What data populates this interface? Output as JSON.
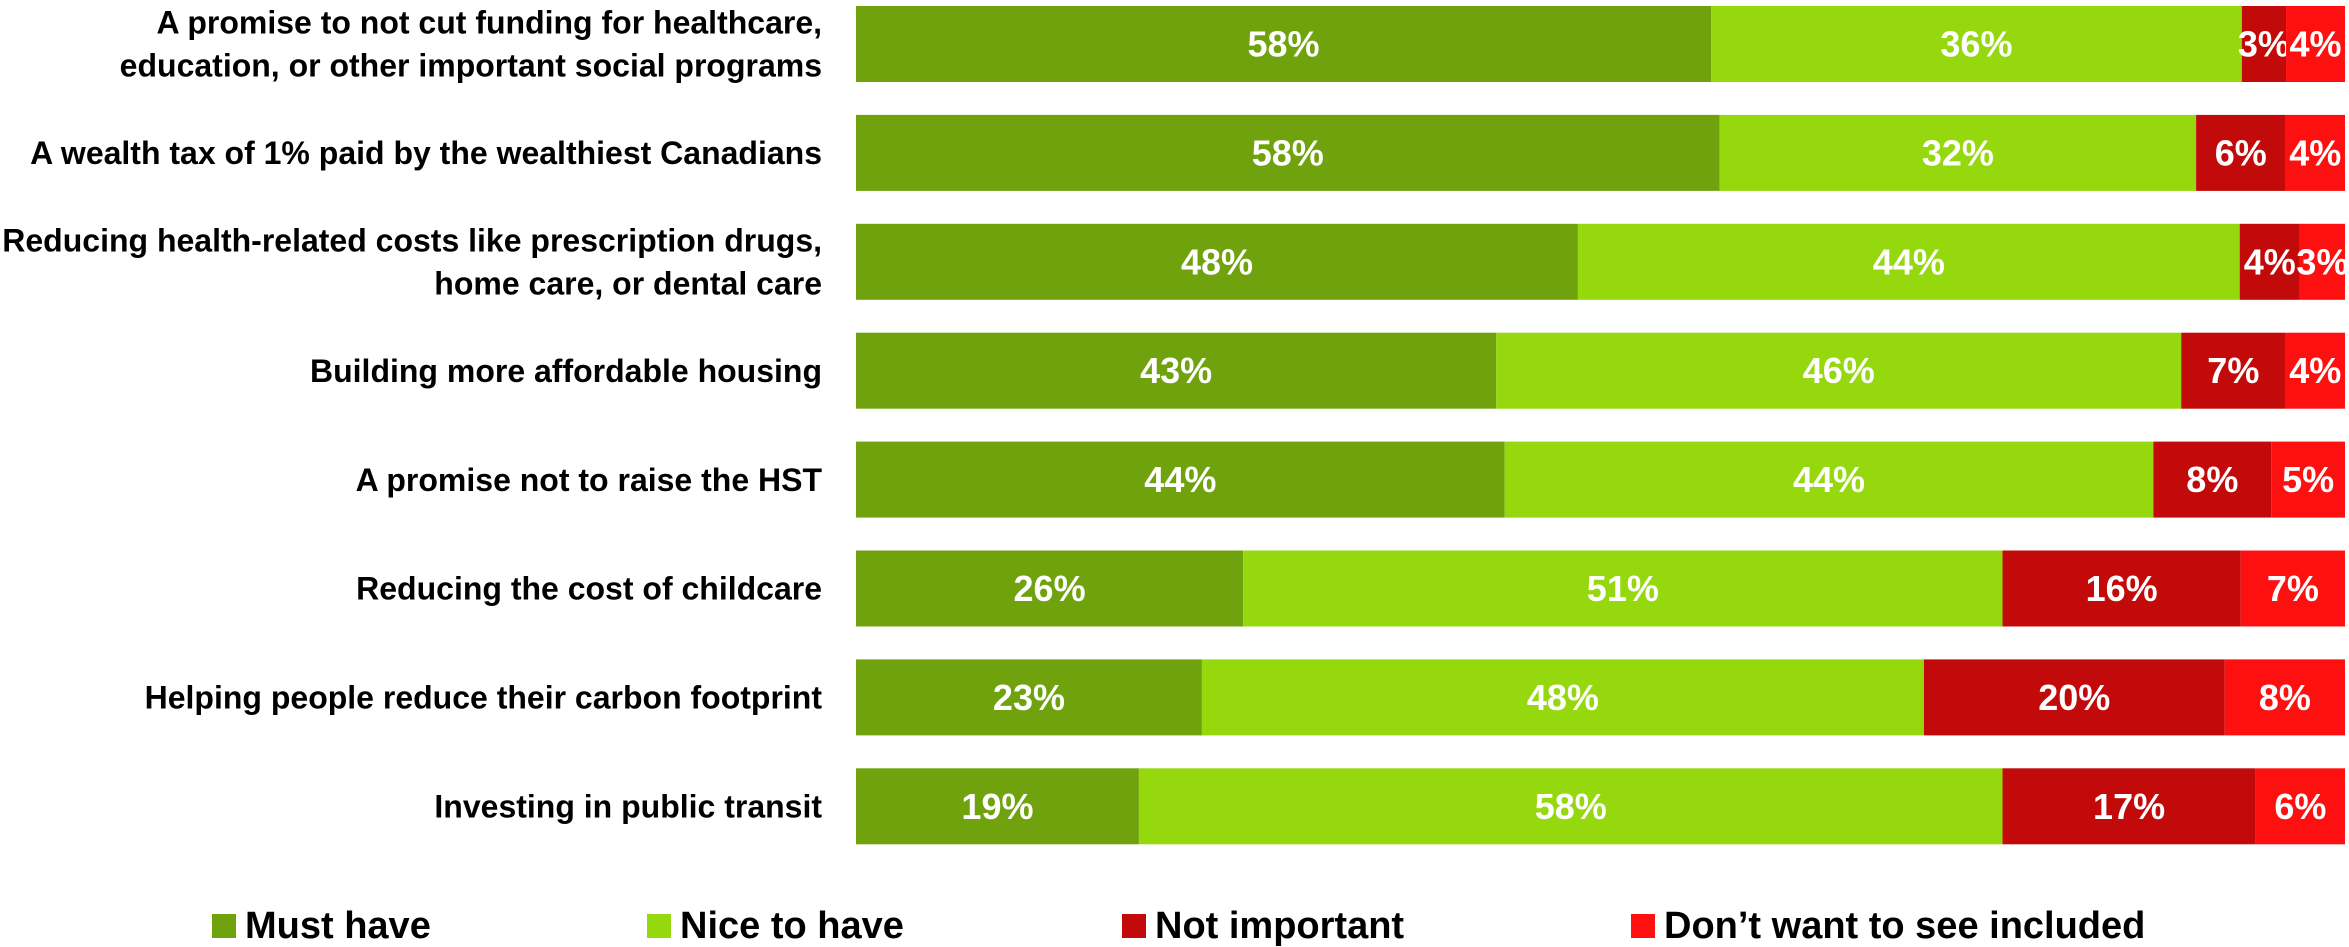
{
  "chart_data": {
    "type": "bar",
    "orientation": "horizontal",
    "stacked": true,
    "percent_stacked": true,
    "title": "",
    "xlabel": "",
    "ylabel": "",
    "xlim": [
      0,
      100
    ],
    "grid": false,
    "legend_position": "bottom",
    "categories": [
      [
        "A promise to not cut funding for healthcare,",
        "education, or other important social programs"
      ],
      [
        "A wealth tax of 1% paid by the wealthiest Canadians"
      ],
      [
        "Reducing health-related costs like prescription drugs,",
        "home care, or dental care"
      ],
      [
        "Building more affordable housing"
      ],
      [
        "A promise not to raise the HST"
      ],
      [
        "Reducing the cost of childcare"
      ],
      [
        "Helping people reduce their carbon footprint"
      ],
      [
        "Investing in public transit"
      ]
    ],
    "series": [
      {
        "name": "Must have",
        "color": "#70A20E",
        "values": [
          58,
          58,
          48,
          43,
          44,
          26,
          23,
          19
        ]
      },
      {
        "name": "Nice to have",
        "color": "#95D80E",
        "values": [
          36,
          32,
          44,
          46,
          44,
          51,
          48,
          58
        ]
      },
      {
        "name": "Not important",
        "color": "#C20A0A",
        "values": [
          3,
          6,
          4,
          7,
          8,
          16,
          20,
          17
        ]
      },
      {
        "name": "Don’t want to see included",
        "color": "#FF1010",
        "values": [
          4,
          4,
          3,
          4,
          5,
          7,
          8,
          6
        ]
      }
    ],
    "value_suffix": "%"
  }
}
